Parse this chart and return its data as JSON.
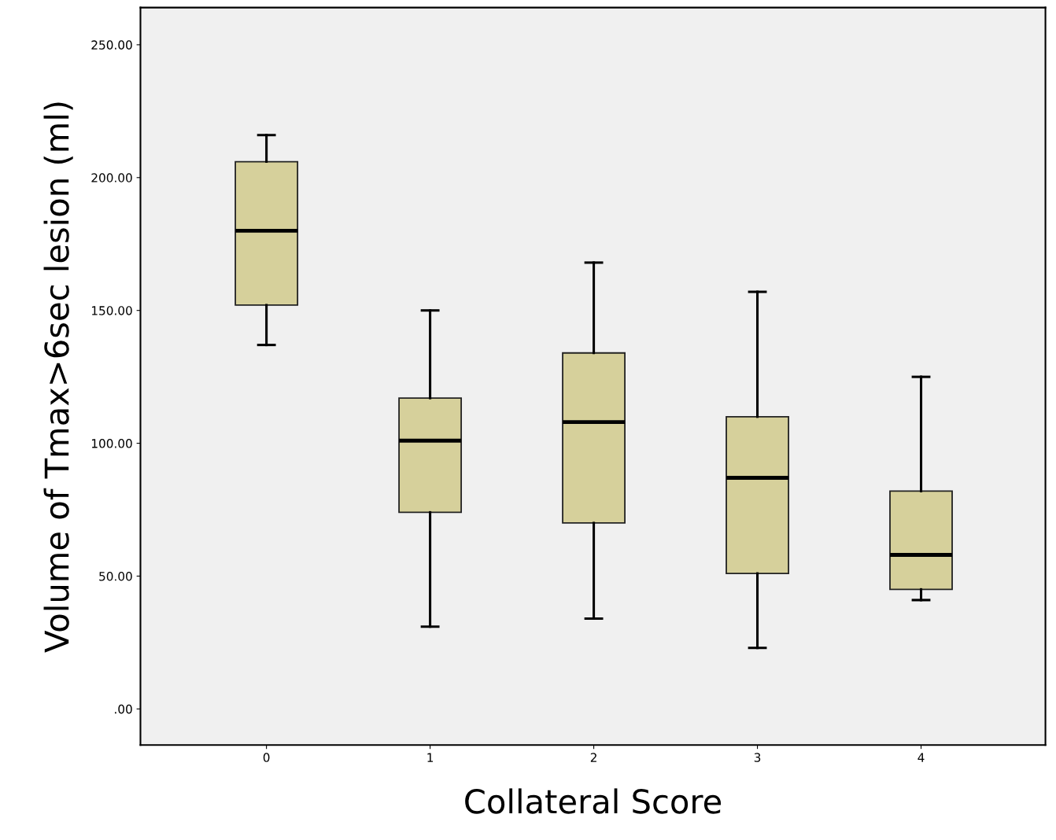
{
  "chart_data": {
    "type": "box",
    "xlabel": "Collateral Score",
    "ylabel": "Volume of Tmax>6sec lesion (ml)",
    "categories": [
      "0",
      "1",
      "2",
      "3",
      "4"
    ],
    "boxes": [
      {
        "low": 137,
        "q1": 152,
        "median": 180,
        "q3": 206,
        "high": 216
      },
      {
        "low": 31,
        "q1": 74,
        "median": 101,
        "q3": 117,
        "high": 150
      },
      {
        "low": 34,
        "q1": 70,
        "median": 108,
        "q3": 134,
        "high": 168
      },
      {
        "low": 23,
        "q1": 51,
        "median": 87,
        "q3": 110,
        "high": 157
      },
      {
        "low": 41,
        "q1": 45,
        "median": 58,
        "q3": 82,
        "high": 125
      }
    ],
    "color": "#d6d09b",
    "ylim": [
      -13.6,
      264
    ],
    "yticks": [
      {
        "value": 0,
        "label": ".00"
      },
      {
        "value": 50,
        "label": "50.00"
      },
      {
        "value": 100,
        "label": "100.00"
      },
      {
        "value": 150,
        "label": "150.00"
      },
      {
        "value": 200,
        "label": "200.00"
      },
      {
        "value": 250,
        "label": "250.00"
      }
    ],
    "grid": false
  }
}
